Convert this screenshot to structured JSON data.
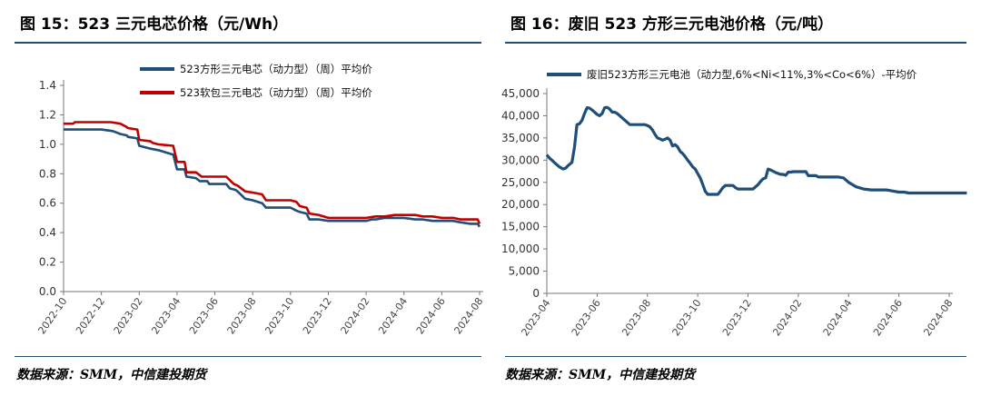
{
  "left": {
    "title": "图 15：523 三元电芯价格（元/Wh）",
    "source": "数据来源：SMM，中信建投期货",
    "chart_data": {
      "type": "line",
      "ylim": [
        0,
        1.4
      ],
      "y_ticks": [
        "0.0",
        "0.2",
        "0.4",
        "0.6",
        "0.8",
        "1.0",
        "1.2",
        "1.4"
      ],
      "x_ticks": [
        "2022-10",
        "2022-12",
        "2023-02",
        "2023-04",
        "2023-06",
        "2023-08",
        "2023-10",
        "2023-12",
        "2024-02",
        "2024-04",
        "2024-06",
        "2024-08"
      ],
      "legend_position": "top",
      "series": [
        {
          "name": "523方形三元电芯（动力型）（周）平均价",
          "color": "#1f4e79",
          "x": [
            0,
            1.0,
            1.5,
            2.0,
            2.6,
            3.0,
            3.35,
            3.4,
            3.9,
            4.0,
            4.6,
            5.0,
            5.8,
            6.0,
            6.4,
            6.5,
            7.0,
            7.2,
            7.6,
            7.7,
            8.3,
            8.6,
            8.8,
            9.1,
            9.2,
            9.6,
            10.0,
            10.5,
            10.7,
            11.0,
            11.5,
            12.0,
            12.3,
            12.5,
            12.85,
            13.0,
            13.5,
            14.0,
            14.5,
            15.0,
            15.5,
            16.0,
            16.3,
            16.5,
            17.0,
            17.6,
            18.0,
            18.6,
            19.0,
            19.5,
            20.0,
            20.6,
            21.0,
            21.5,
            21.9,
            22.0
          ],
          "values": [
            1.1,
            1.1,
            1.1,
            1.1,
            1.09,
            1.07,
            1.06,
            1.05,
            1.04,
            0.99,
            0.97,
            0.96,
            0.93,
            0.83,
            0.83,
            0.78,
            0.77,
            0.75,
            0.75,
            0.73,
            0.73,
            0.73,
            0.7,
            0.69,
            0.68,
            0.63,
            0.62,
            0.6,
            0.57,
            0.57,
            0.57,
            0.57,
            0.55,
            0.54,
            0.53,
            0.49,
            0.49,
            0.48,
            0.48,
            0.48,
            0.48,
            0.48,
            0.49,
            0.49,
            0.5,
            0.5,
            0.5,
            0.49,
            0.49,
            0.48,
            0.48,
            0.48,
            0.47,
            0.46,
            0.46,
            0.44
          ]
        },
        {
          "name": "523软包三元电芯（动力型）（周）平均价",
          "color": "#c00000",
          "x": [
            0,
            0.5,
            0.6,
            1.5,
            2.5,
            3.0,
            3.3,
            3.4,
            3.9,
            4.0,
            4.6,
            4.7,
            5.0,
            5.8,
            6.0,
            6.4,
            6.5,
            7.0,
            7.3,
            7.6,
            7.7,
            8.3,
            8.6,
            9.0,
            9.2,
            9.6,
            10.1,
            10.5,
            10.7,
            11.3,
            11.8,
            12.0,
            12.3,
            12.5,
            12.85,
            13.0,
            13.5,
            14.0,
            14.5,
            15.0,
            15.5,
            16.0,
            16.5,
            17.0,
            17.5,
            18.0,
            18.6,
            19.0,
            19.5,
            20.0,
            20.6,
            21.0,
            21.5,
            21.9,
            22.0
          ],
          "values": [
            1.14,
            1.14,
            1.15,
            1.15,
            1.15,
            1.14,
            1.12,
            1.11,
            1.1,
            1.03,
            1.02,
            1.01,
            1.0,
            0.99,
            0.88,
            0.88,
            0.81,
            0.81,
            0.78,
            0.78,
            0.78,
            0.78,
            0.78,
            0.73,
            0.72,
            0.68,
            0.67,
            0.66,
            0.62,
            0.62,
            0.62,
            0.62,
            0.61,
            0.58,
            0.57,
            0.53,
            0.52,
            0.5,
            0.5,
            0.5,
            0.5,
            0.5,
            0.51,
            0.51,
            0.52,
            0.52,
            0.52,
            0.51,
            0.51,
            0.5,
            0.5,
            0.49,
            0.49,
            0.49,
            0.46
          ]
        }
      ]
    }
  },
  "right": {
    "title": "图 16：废旧 523 方形三元电池价格（元/吨）",
    "source": "数据来源：SMM，中信建投期货",
    "chart_data": {
      "type": "line",
      "ylim": [
        0,
        45000
      ],
      "y_ticks": [
        "0",
        "5,000",
        "10,000",
        "15,000",
        "20,000",
        "25,000",
        "30,000",
        "35,000",
        "40,000",
        "45,000"
      ],
      "x_ticks": [
        "2023-04",
        "2023-06",
        "2023-08",
        "2023-10",
        "2023-12",
        "2024-02",
        "2024-04",
        "2024-06",
        "2024-08"
      ],
      "legend_position": "top",
      "series": [
        {
          "name": "废旧523方形三元电池（动力型,6%<Ni<11%,3%<Co<6%）-平均价",
          "color": "#1f4e79",
          "x": [
            0,
            0.1,
            0.2,
            0.35,
            0.5,
            0.65,
            0.75,
            0.85,
            1.0,
            1.1,
            1.2,
            1.3,
            1.4,
            1.5,
            1.6,
            1.7,
            1.8,
            1.9,
            2.0,
            2.1,
            2.2,
            2.3,
            2.4,
            2.5,
            2.6,
            2.7,
            2.8,
            3.0,
            3.3,
            3.6,
            3.9,
            4.0,
            4.1,
            4.2,
            4.3,
            4.4,
            4.5,
            4.6,
            4.7,
            4.8,
            4.9,
            5.0,
            5.1,
            5.2,
            5.3,
            5.4,
            5.5,
            5.6,
            5.7,
            5.8,
            5.9,
            6.0,
            6.1,
            6.2,
            6.3,
            6.4,
            6.5,
            6.6,
            6.7,
            6.8,
            6.9,
            7.0,
            7.1,
            7.2,
            7.3,
            7.4,
            7.5,
            7.6,
            7.7,
            7.8,
            7.9,
            8.0,
            8.1,
            8.2,
            8.3,
            8.4,
            8.5,
            8.6,
            8.7,
            8.8,
            8.9,
            9.0,
            9.1,
            9.2,
            9.3,
            9.4,
            9.5,
            9.6,
            9.7,
            9.8,
            9.9,
            10.0,
            10.1,
            10.2,
            10.3,
            10.4,
            10.5,
            10.6,
            10.7,
            10.8,
            10.9,
            11.0,
            11.2,
            11.4,
            11.6,
            11.8,
            12.0,
            12.3,
            12.6,
            12.9,
            13.2,
            13.5,
            13.8,
            14.0,
            14.2,
            14.4,
            14.6,
            14.8,
            15.0,
            15.3,
            15.6,
            15.9,
            16.2,
            16.5,
            16.7
          ],
          "values": [
            31200,
            30500,
            30000,
            29200,
            28500,
            28000,
            28200,
            28800,
            29500,
            33000,
            38000,
            38200,
            39000,
            40500,
            41800,
            41700,
            41300,
            40800,
            40300,
            40000,
            40500,
            41800,
            41900,
            41500,
            40800,
            40800,
            40500,
            39500,
            38000,
            38000,
            38000,
            37800,
            37500,
            36800,
            35800,
            35000,
            34800,
            34500,
            34700,
            35000,
            34500,
            33200,
            33500,
            33000,
            32000,
            31500,
            30800,
            30000,
            29300,
            28500,
            28000,
            27000,
            26000,
            24500,
            23000,
            22300,
            22300,
            22300,
            22300,
            22300,
            23000,
            23800,
            24300,
            24300,
            24300,
            24300,
            23800,
            23500,
            23500,
            23500,
            23500,
            23500,
            23500,
            23500,
            24000,
            24500,
            25200,
            25800,
            26000,
            28000,
            27800,
            27500,
            27200,
            27000,
            26800,
            26800,
            26600,
            27300,
            27300,
            27400,
            27400,
            27400,
            27400,
            27400,
            27400,
            26500,
            26500,
            26500,
            26500,
            26200,
            26200,
            26200,
            26200,
            26200,
            26200,
            26000,
            25000,
            24000,
            23500,
            23300,
            23300,
            23300,
            23000,
            22800,
            22800,
            22600,
            22600,
            22600,
            22600,
            22600,
            22600,
            22600,
            22600,
            22600,
            22600
          ]
        }
      ]
    }
  }
}
